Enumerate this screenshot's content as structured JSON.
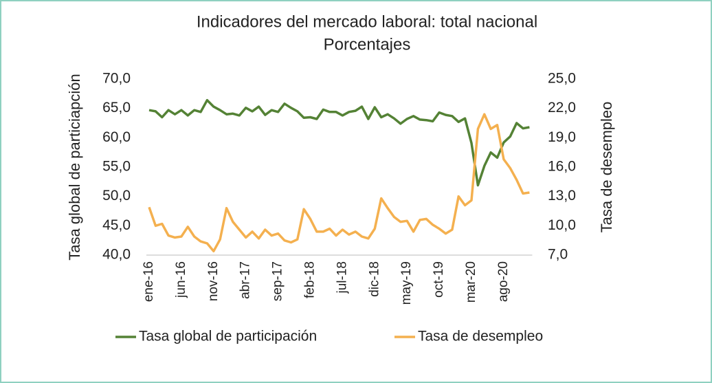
{
  "chart_data": {
    "type": "line",
    "title": "Indicadores del mercado laboral: total nacional",
    "subtitle": "Porcentajes",
    "y_label": "Tasa global de particiapción",
    "y2_label": "Tasa de desempleo",
    "categories": [
      "ene-16",
      null,
      null,
      null,
      null,
      "jun-16",
      null,
      null,
      null,
      null,
      "nov-16",
      null,
      null,
      null,
      null,
      "abr-17",
      null,
      null,
      null,
      null,
      "sep-17",
      null,
      null,
      null,
      null,
      "feb-18",
      null,
      null,
      null,
      null,
      "jul-18",
      null,
      null,
      null,
      null,
      "dic-18",
      null,
      null,
      null,
      null,
      "may-19",
      null,
      null,
      null,
      null,
      "oct-19",
      null,
      null,
      null,
      null,
      "mar-20",
      null,
      null,
      null,
      null,
      "ago-20",
      null,
      null,
      null,
      null
    ],
    "series": [
      {
        "name": "Tasa global de participación",
        "color": "#548235",
        "values": [
          64.7,
          64.5,
          63.5,
          64.7,
          64.0,
          64.7,
          63.8,
          64.7,
          64.4,
          66.4,
          65.3,
          64.7,
          64.0,
          64.1,
          63.8,
          65.1,
          64.5,
          65.3,
          63.9,
          64.7,
          64.4,
          65.8,
          65.1,
          64.5,
          63.4,
          63.5,
          63.2,
          64.8,
          64.4,
          64.4,
          63.8,
          64.4,
          64.6,
          65.3,
          63.2,
          65.2,
          63.5,
          64.0,
          63.3,
          62.4,
          63.2,
          63.7,
          63.1,
          63.0,
          62.8,
          64.3,
          63.9,
          63.7,
          62.7,
          63.3,
          59.1,
          51.9,
          55.2,
          57.5,
          56.6,
          59.2,
          60.2,
          62.5,
          61.6,
          61.8
        ]
      },
      {
        "name": "Tasa de desempleo",
        "color": "#f4b04f",
        "axis": "y2",
        "values": [
          11.9,
          10.0,
          10.2,
          9.0,
          8.8,
          8.9,
          9.9,
          8.9,
          8.4,
          8.2,
          7.4,
          8.6,
          11.8,
          10.4,
          9.6,
          8.8,
          9.4,
          8.7,
          9.6,
          9.0,
          9.2,
          8.5,
          8.3,
          8.6,
          11.7,
          10.7,
          9.4,
          9.4,
          9.7,
          9.0,
          9.6,
          9.1,
          9.4,
          8.9,
          8.7,
          9.7,
          12.8,
          11.8,
          10.9,
          10.4,
          10.5,
          9.4,
          10.6,
          10.7,
          10.1,
          9.7,
          9.2,
          9.6,
          13.0,
          12.1,
          12.6,
          19.9,
          21.4,
          19.9,
          20.3,
          16.8,
          15.9,
          14.7,
          13.3,
          13.4
        ]
      }
    ],
    "ylim": [
      40,
      70
    ],
    "yticks": [
      {
        "value": 40,
        "label": "40,0"
      },
      {
        "value": 45,
        "label": "45,0"
      },
      {
        "value": 50,
        "label": "50,0"
      },
      {
        "value": 55,
        "label": "55,0"
      },
      {
        "value": 60,
        "label": "60,0"
      },
      {
        "value": 65,
        "label": "65,0"
      },
      {
        "value": 70,
        "label": "70,0"
      }
    ],
    "y2lim": [
      7,
      25
    ],
    "y2ticks": [
      {
        "value": 7,
        "label": "7,0"
      },
      {
        "value": 10,
        "label": "10,0"
      },
      {
        "value": 13,
        "label": "13,0"
      },
      {
        "value": 16,
        "label": "16,0"
      },
      {
        "value": 19,
        "label": "19,0"
      },
      {
        "value": 22,
        "label": "22,0"
      },
      {
        "value": 25,
        "label": "25,0"
      }
    ],
    "grid": false,
    "legend": "bottom"
  }
}
